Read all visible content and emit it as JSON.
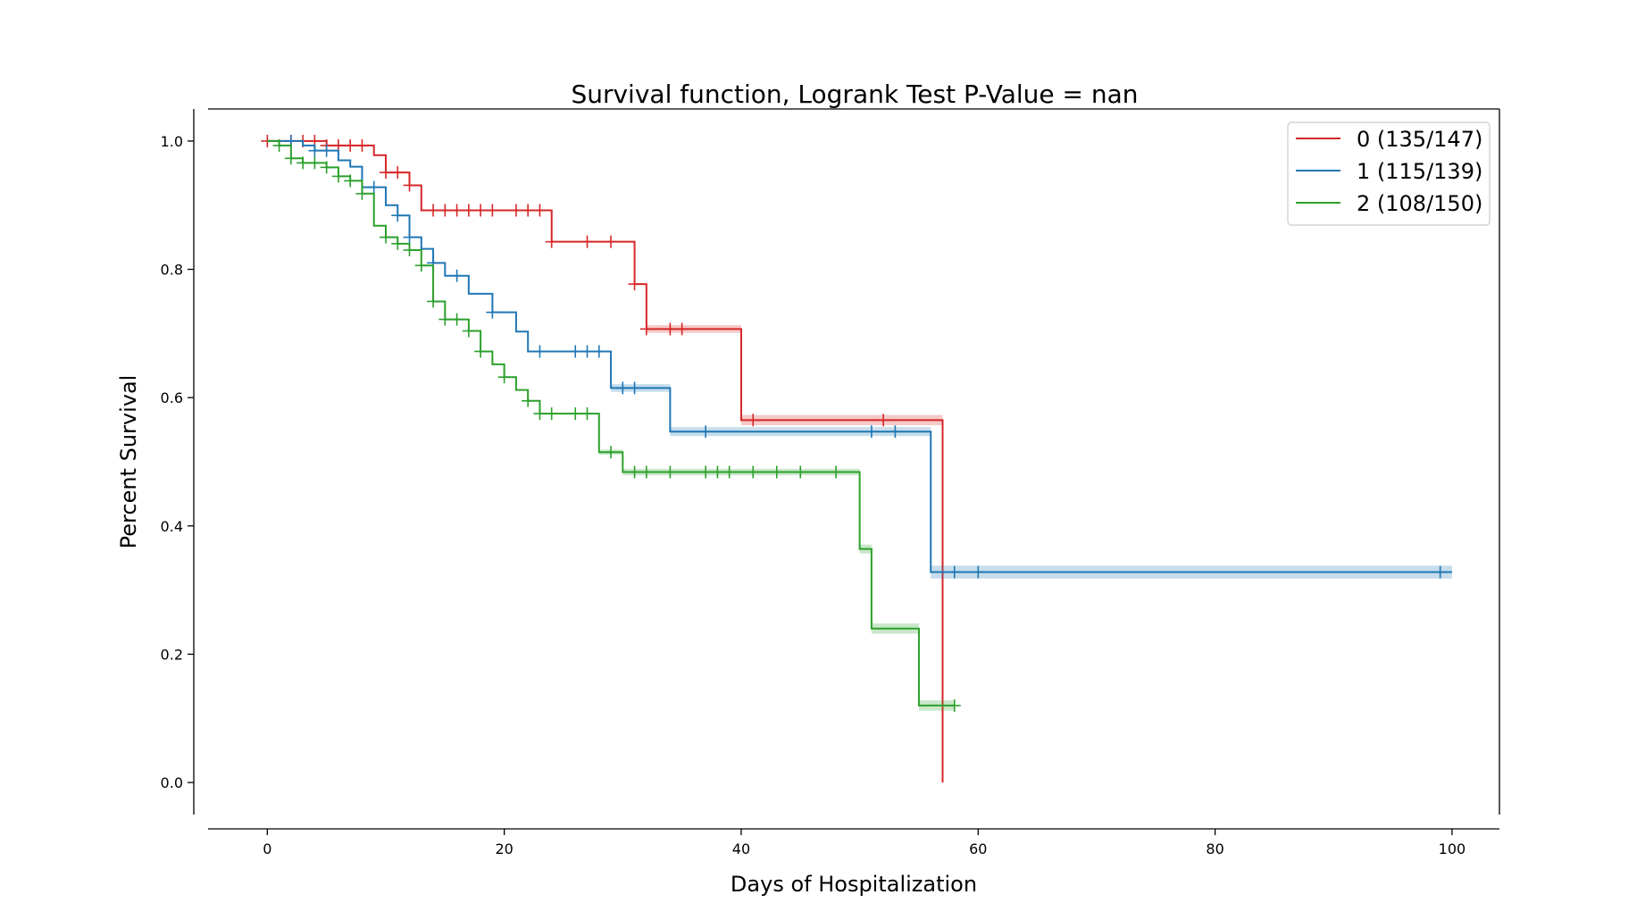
{
  "chart_data": {
    "type": "line",
    "title": "Survival function, Logrank Test P-Value = nan",
    "xlabel": "Days of Hospitalization",
    "ylabel": "Percent Survival",
    "xlim": [
      -5,
      104
    ],
    "ylim": [
      -0.05,
      1.05
    ],
    "xticks": [
      0,
      20,
      40,
      60,
      80,
      100
    ],
    "yticks": [
      0.0,
      0.2,
      0.4,
      0.6,
      0.8,
      1.0
    ],
    "xtick_labels": [
      "0",
      "20",
      "40",
      "60",
      "80",
      "100"
    ],
    "ytick_labels": [
      "0.0",
      "0.2",
      "0.4",
      "0.6",
      "0.8",
      "1.0"
    ],
    "grid": false,
    "legend_position": "top-right",
    "series": [
      {
        "name": "0 (135/147)",
        "color": "#d62728",
        "steps": [
          [
            0,
            1.0
          ],
          [
            5,
            0.993
          ],
          [
            9,
            0.978
          ],
          [
            10,
            0.951
          ],
          [
            12,
            0.931
          ],
          [
            13,
            0.892
          ],
          [
            24,
            0.843
          ],
          [
            31,
            0.777
          ],
          [
            32,
            0.707
          ],
          [
            40,
            0.565
          ],
          [
            57,
            0.0
          ]
        ],
        "end_x": 57,
        "band": [
          [
            31,
            0.0
          ],
          [
            32,
            0.006
          ],
          [
            40,
            0.008
          ],
          [
            57,
            0.0
          ]
        ],
        "censored": [
          [
            0,
            1.0
          ],
          [
            2,
            1.0
          ],
          [
            3,
            1.0
          ],
          [
            4,
            1.0
          ],
          [
            5,
            0.993
          ],
          [
            6,
            0.993
          ],
          [
            7,
            0.993
          ],
          [
            8,
            0.993
          ],
          [
            10,
            0.951
          ],
          [
            11,
            0.951
          ],
          [
            12,
            0.931
          ],
          [
            14,
            0.892
          ],
          [
            15,
            0.892
          ],
          [
            16,
            0.892
          ],
          [
            17,
            0.892
          ],
          [
            18,
            0.892
          ],
          [
            19,
            0.892
          ],
          [
            21,
            0.892
          ],
          [
            22,
            0.892
          ],
          [
            23,
            0.892
          ],
          [
            24,
            0.843
          ],
          [
            27,
            0.843
          ],
          [
            29,
            0.843
          ],
          [
            31,
            0.777
          ],
          [
            32,
            0.707
          ],
          [
            34,
            0.707
          ],
          [
            35,
            0.707
          ],
          [
            41,
            0.565
          ],
          [
            52,
            0.565
          ]
        ]
      },
      {
        "name": "1 (115/139)",
        "color": "#1f77b4",
        "steps": [
          [
            0,
            1.0
          ],
          [
            3,
            0.993
          ],
          [
            4,
            0.985
          ],
          [
            6,
            0.97
          ],
          [
            7,
            0.96
          ],
          [
            8,
            0.928
          ],
          [
            10,
            0.9
          ],
          [
            11,
            0.884
          ],
          [
            12,
            0.85
          ],
          [
            13,
            0.832
          ],
          [
            14,
            0.81
          ],
          [
            15,
            0.79
          ],
          [
            17,
            0.762
          ],
          [
            19,
            0.733
          ],
          [
            21,
            0.703
          ],
          [
            22,
            0.672
          ],
          [
            29,
            0.615
          ],
          [
            34,
            0.547
          ],
          [
            56,
            0.328
          ],
          [
            99,
            0.328
          ]
        ],
        "end_x": 100,
        "band": [
          [
            29,
            0.006
          ],
          [
            34,
            0.007
          ],
          [
            56,
            0.01
          ],
          [
            100,
            0.01
          ]
        ],
        "censored": [
          [
            2,
            1.0
          ],
          [
            4,
            0.985
          ],
          [
            5,
            0.985
          ],
          [
            9,
            0.928
          ],
          [
            11,
            0.884
          ],
          [
            12,
            0.85
          ],
          [
            14,
            0.81
          ],
          [
            16,
            0.79
          ],
          [
            19,
            0.733
          ],
          [
            23,
            0.672
          ],
          [
            26,
            0.672
          ],
          [
            27,
            0.672
          ],
          [
            28,
            0.672
          ],
          [
            30,
            0.615
          ],
          [
            31,
            0.615
          ],
          [
            37,
            0.547
          ],
          [
            51,
            0.547
          ],
          [
            53,
            0.547
          ],
          [
            58,
            0.328
          ],
          [
            60,
            0.328
          ],
          [
            99,
            0.328
          ]
        ]
      },
      {
        "name": "2 (108/150)",
        "color": "#2ca02c",
        "steps": [
          [
            0,
            1.0
          ],
          [
            1,
            0.993
          ],
          [
            2,
            0.973
          ],
          [
            3,
            0.966
          ],
          [
            5,
            0.959
          ],
          [
            6,
            0.945
          ],
          [
            7,
            0.938
          ],
          [
            8,
            0.918
          ],
          [
            9,
            0.868
          ],
          [
            10,
            0.85
          ],
          [
            11,
            0.84
          ],
          [
            12,
            0.83
          ],
          [
            13,
            0.806
          ],
          [
            14,
            0.75
          ],
          [
            15,
            0.722
          ],
          [
            17,
            0.704
          ],
          [
            18,
            0.672
          ],
          [
            19,
            0.652
          ],
          [
            20,
            0.632
          ],
          [
            21,
            0.612
          ],
          [
            22,
            0.595
          ],
          [
            23,
            0.575
          ],
          [
            28,
            0.515
          ],
          [
            30,
            0.484
          ],
          [
            50,
            0.364
          ],
          [
            51,
            0.24
          ],
          [
            55,
            0.12
          ]
        ],
        "end_x": 58,
        "band": [
          [
            28,
            0.004
          ],
          [
            30,
            0.005
          ],
          [
            50,
            0.007
          ],
          [
            51,
            0.008
          ],
          [
            55,
            0.008
          ],
          [
            58,
            0.008
          ]
        ],
        "censored": [
          [
            1,
            0.993
          ],
          [
            2,
            0.973
          ],
          [
            3,
            0.966
          ],
          [
            4,
            0.966
          ],
          [
            5,
            0.959
          ],
          [
            6,
            0.945
          ],
          [
            7,
            0.938
          ],
          [
            8,
            0.918
          ],
          [
            10,
            0.85
          ],
          [
            11,
            0.84
          ],
          [
            12,
            0.83
          ],
          [
            13,
            0.806
          ],
          [
            14,
            0.75
          ],
          [
            15,
            0.722
          ],
          [
            16,
            0.722
          ],
          [
            17,
            0.704
          ],
          [
            18,
            0.672
          ],
          [
            20,
            0.632
          ],
          [
            22,
            0.595
          ],
          [
            23,
            0.575
          ],
          [
            24,
            0.575
          ],
          [
            26,
            0.575
          ],
          [
            27,
            0.575
          ],
          [
            29,
            0.515
          ],
          [
            31,
            0.484
          ],
          [
            32,
            0.484
          ],
          [
            34,
            0.484
          ],
          [
            37,
            0.484
          ],
          [
            38,
            0.484
          ],
          [
            39,
            0.484
          ],
          [
            41,
            0.484
          ],
          [
            43,
            0.484
          ],
          [
            45,
            0.484
          ],
          [
            48,
            0.484
          ],
          [
            58,
            0.12
          ]
        ]
      }
    ]
  }
}
